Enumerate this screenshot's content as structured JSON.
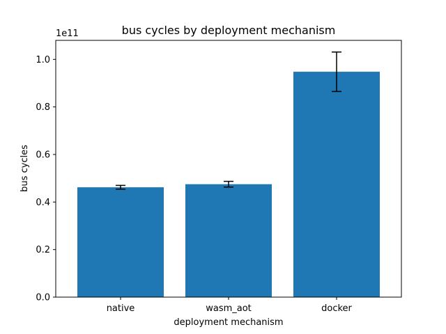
{
  "chart_data": {
    "type": "bar",
    "title": "bus cycles by deployment mechanism",
    "xlabel": "deployment mechanism",
    "ylabel": "bus cycles",
    "y_offset_label": "1e11",
    "y_scale": 100000000000,
    "categories": [
      "native",
      "wasm_aot",
      "docker"
    ],
    "values": [
      46200000000,
      47500000000,
      94800000000
    ],
    "errors": [
      800000000,
      1200000000,
      8300000000
    ],
    "ylim": [
      0,
      108000000000
    ],
    "yticks": [
      0,
      20000000000,
      40000000000,
      60000000000,
      80000000000,
      100000000000
    ],
    "ytick_labels": [
      "0.0",
      "0.2",
      "0.4",
      "0.6",
      "0.8",
      "1.0"
    ],
    "grid": false,
    "bar_color": "#1f77b4",
    "error_color": "#000000"
  }
}
